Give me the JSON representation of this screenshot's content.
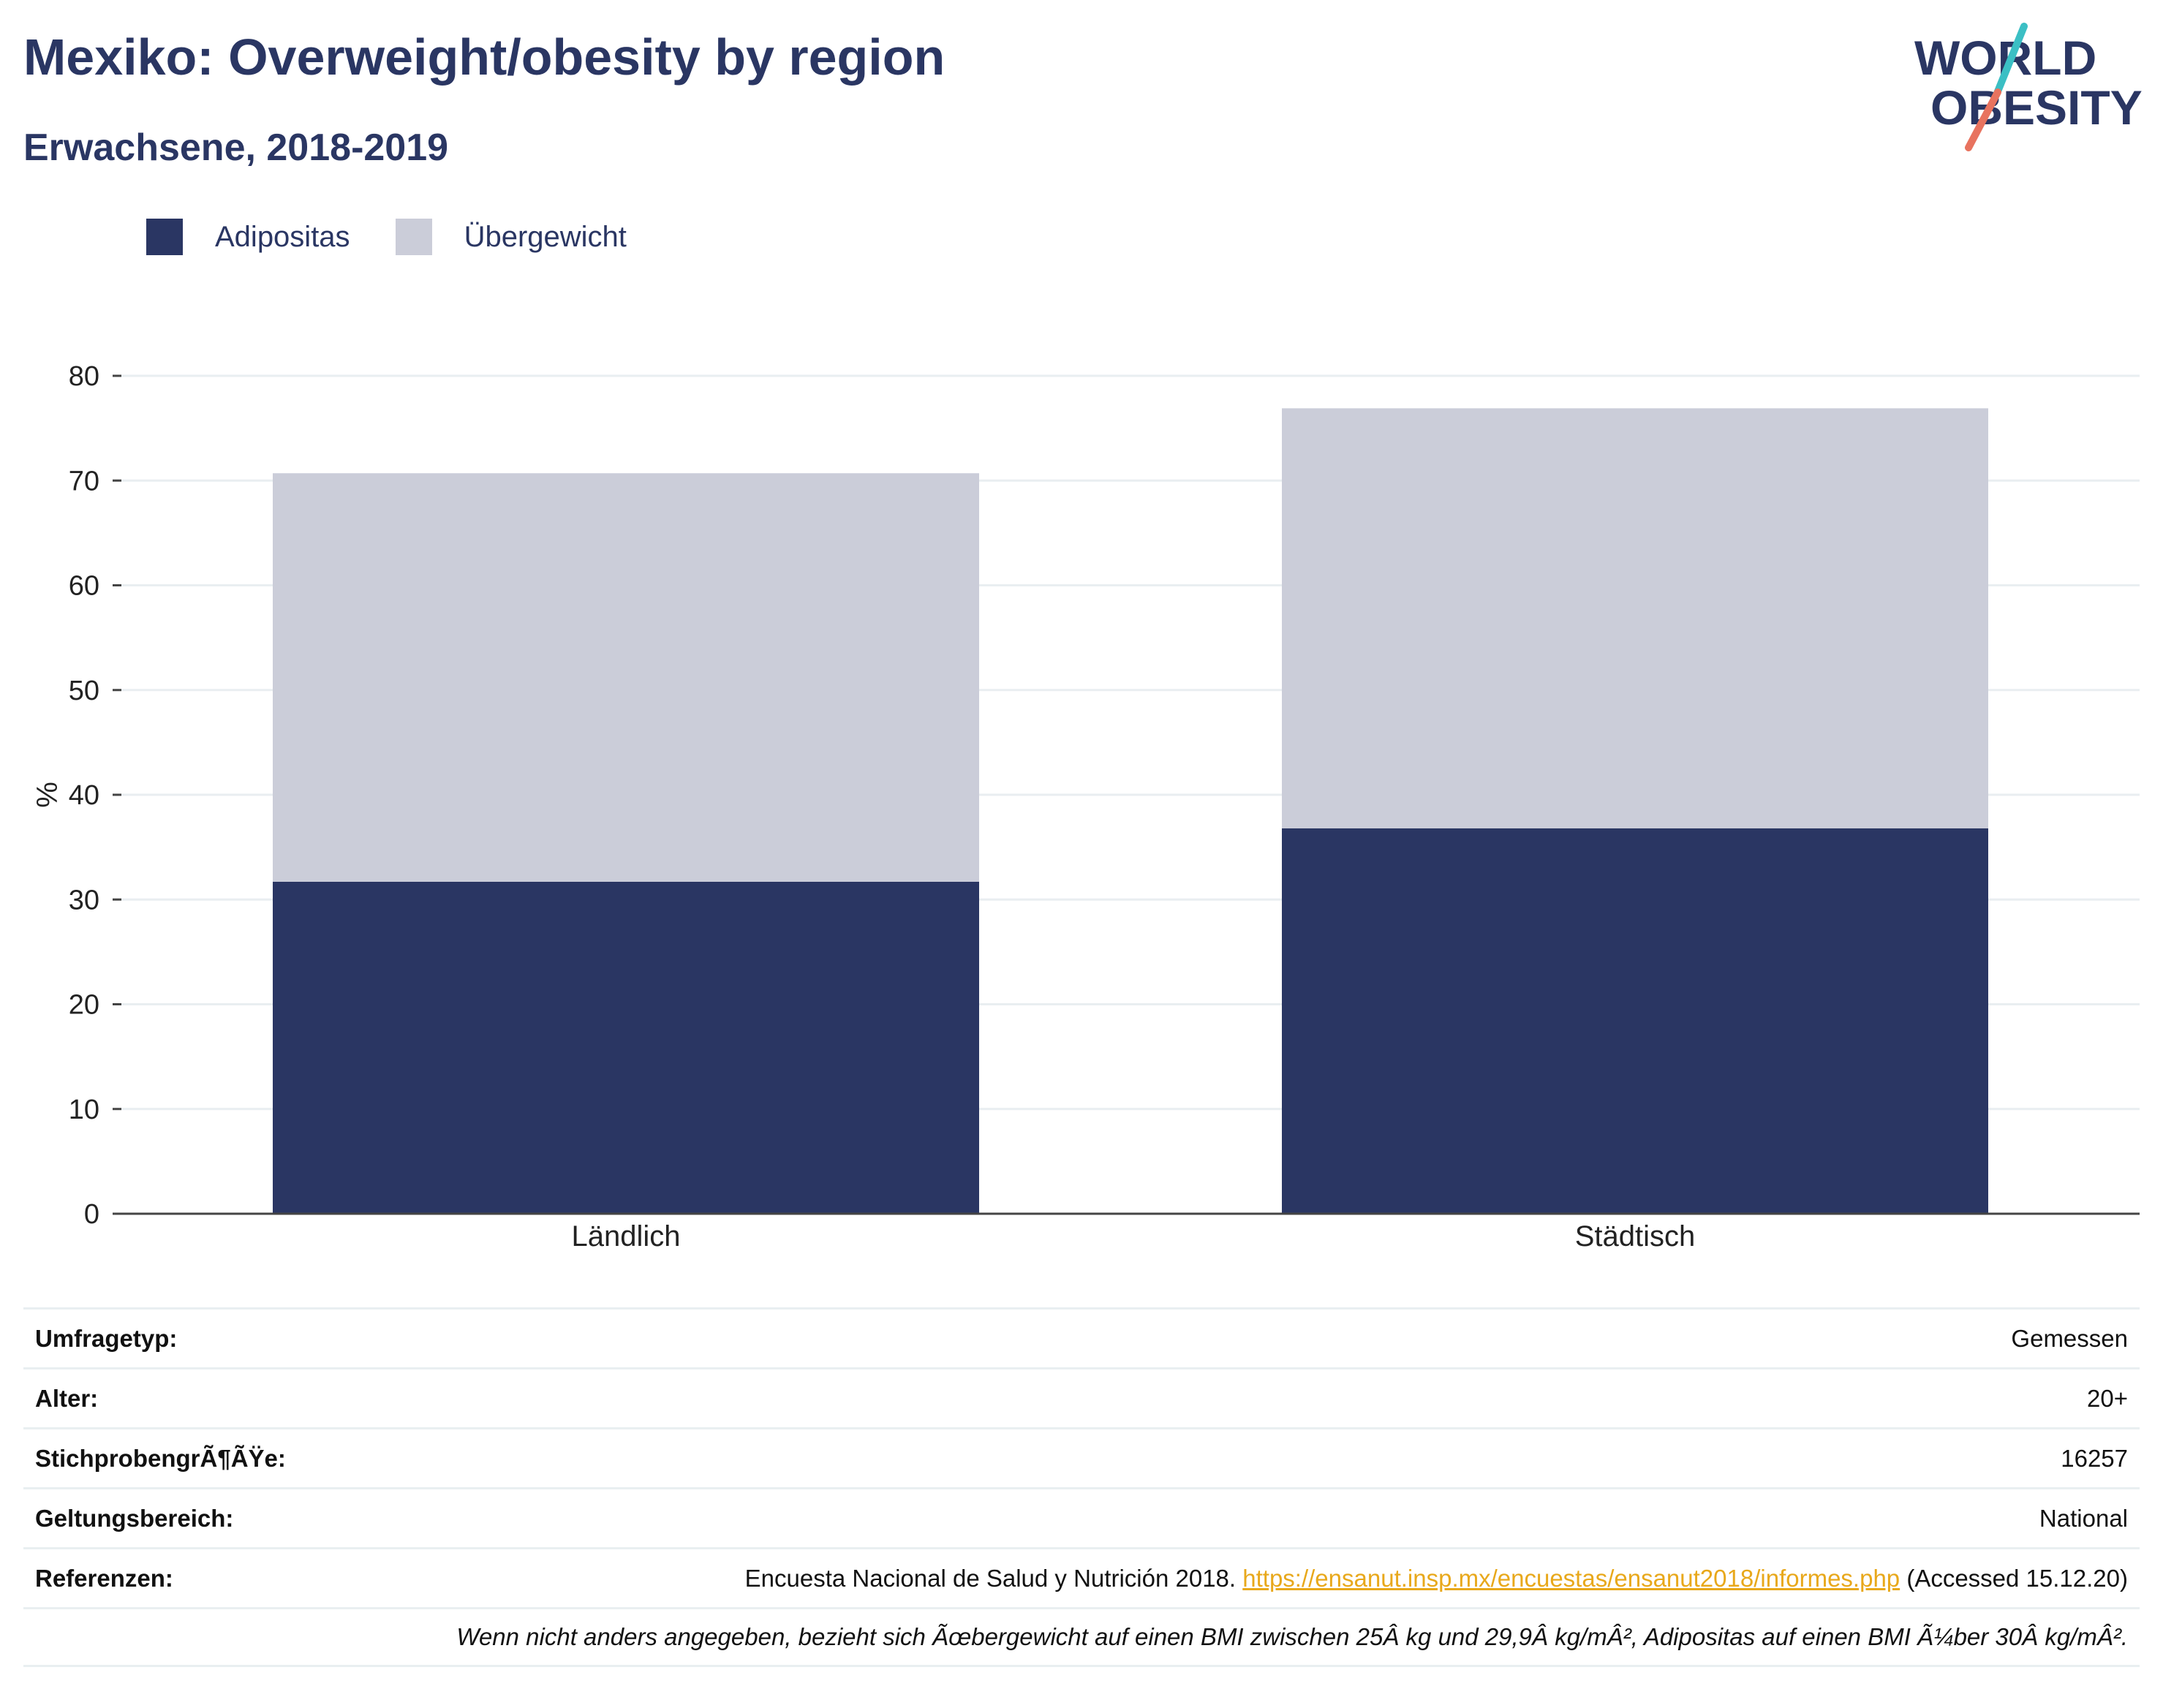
{
  "title": "Mexiko: Overweight/obesity by region",
  "subtitle": "Erwachsene, 2018-2019",
  "logo": {
    "line1": "WORLD",
    "line2": "OBESITY"
  },
  "colors": {
    "obesity": "#2a3663",
    "overweight": "#cbcdd9",
    "text": "#2a3663",
    "link": "#e8a81b",
    "grid": "#e9eef1",
    "logo_teal": "#3bbfc4",
    "logo_coral": "#e8735f"
  },
  "chart_data": {
    "type": "bar",
    "stacked": true,
    "categories": [
      "Ländlich",
      "Städtisch"
    ],
    "series": [
      {
        "name": "Adipositas",
        "values": [
          31.7,
          36.8
        ]
      },
      {
        "name": "Übergewicht",
        "values": [
          39.0,
          40.1
        ]
      }
    ],
    "ylabel": "%",
    "ylim": [
      0,
      80
    ],
    "yticks": [
      0,
      10,
      20,
      30,
      40,
      50,
      60,
      70,
      80
    ],
    "grid": true,
    "legend_position": "top-left"
  },
  "info": {
    "survey_type": {
      "label": "Umfragetyp:",
      "value": "Gemessen"
    },
    "age": {
      "label": "Alter:",
      "value": "20+"
    },
    "sample_size": {
      "label": "StichprobengrÃ¶ÃŸe:",
      "value": "16257"
    },
    "coverage": {
      "label": "Geltungsbereich:",
      "value": "National"
    },
    "references": {
      "label": "Referenzen:",
      "text_before": "Encuesta Nacional de Salud y Nutrición 2018.",
      "link": "https://ensanut.insp.mx/encuestas/ensanut2018/informes.php",
      "text_after": "(Accessed 15.12.20)"
    },
    "note": "Wenn nicht anders angegeben, bezieht sich Ãœbergewicht auf einen BMI zwischen 25Â kg und 29,9Â kg/mÂ², Adipositas auf einen BMI Ã¼ber 30Â kg/mÂ²."
  }
}
